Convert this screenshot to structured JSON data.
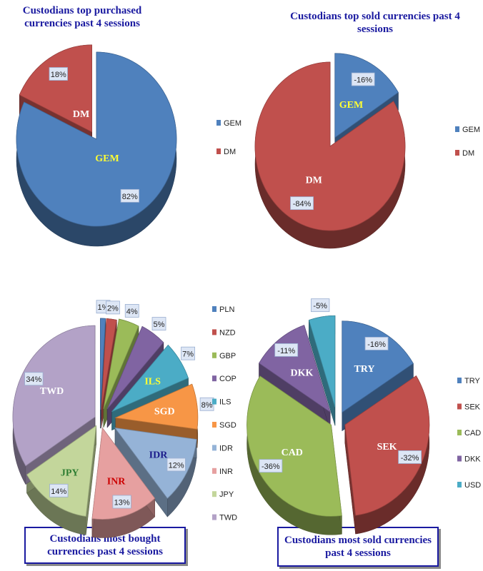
{
  "chart_data": [
    {
      "type": "pie",
      "title": "Custodians top purchased currencies past 4 sessions",
      "categories": [
        "GEM",
        "DM"
      ],
      "values": [
        82,
        18
      ],
      "value_labels": [
        "82%",
        "18%"
      ],
      "inner_labels": [
        "GEM",
        "DM"
      ],
      "legend": [
        "GEM",
        "DM"
      ],
      "legend_position": "right",
      "colors": [
        "#4f81bd",
        "#c0504d"
      ]
    },
    {
      "type": "pie",
      "title": "Custodians top sold currencies past 4 sessions",
      "categories": [
        "GEM",
        "DM"
      ],
      "values": [
        -16,
        -84
      ],
      "value_labels": [
        "-16%",
        "-84%"
      ],
      "inner_labels": [
        "GEM",
        "DM"
      ],
      "legend": [
        "GEM",
        "DM"
      ],
      "legend_position": "right",
      "colors": [
        "#4f81bd",
        "#c0504d"
      ]
    },
    {
      "type": "pie",
      "title": "Custodians most bought currencies past 4 sessions",
      "categories": [
        "PLN",
        "NZD",
        "GBP",
        "COP",
        "ILS",
        "SGD",
        "IDR",
        "INR",
        "JPY",
        "TWD"
      ],
      "values": [
        1,
        2,
        4,
        5,
        7,
        8,
        12,
        13,
        14,
        34
      ],
      "value_labels": [
        "1%",
        "2%",
        "4%",
        "5%",
        "7%",
        "8%",
        "12%",
        "13%",
        "14%",
        "34%"
      ],
      "inner_labels": [
        "",
        "",
        "",
        "",
        "ILS",
        "SGD",
        "IDR",
        "INR",
        "JPY",
        "TWD"
      ],
      "legend": [
        "PLN",
        "NZD",
        "GBP",
        "COP",
        "ILS",
        "SGD",
        "IDR",
        "INR",
        "JPY",
        "TWD"
      ],
      "legend_position": "right",
      "colors": [
        "#4f81bd",
        "#c0504d",
        "#9bbb59",
        "#8064a2",
        "#4bacc6",
        "#f79646",
        "#95b3d7",
        "#e6a0a0",
        "#c3d69b",
        "#b3a2c7"
      ]
    },
    {
      "type": "pie",
      "title": "Custodians most sold currencies past 4 sessions",
      "categories": [
        "TRY",
        "SEK",
        "CAD",
        "DKK",
        "USD"
      ],
      "values": [
        -16,
        -32,
        -36,
        -11,
        -5
      ],
      "value_labels": [
        "-16%",
        "-32%",
        "-36%",
        "-11%",
        "-5%"
      ],
      "inner_labels": [
        "TRY",
        "SEK",
        "CAD",
        "DKK",
        ""
      ],
      "legend": [
        "TRY",
        "SEK",
        "CAD",
        "DKK",
        "USD"
      ],
      "legend_position": "right",
      "colors": [
        "#4f81bd",
        "#c0504d",
        "#9bbb59",
        "#8064a2",
        "#4bacc6"
      ]
    }
  ]
}
